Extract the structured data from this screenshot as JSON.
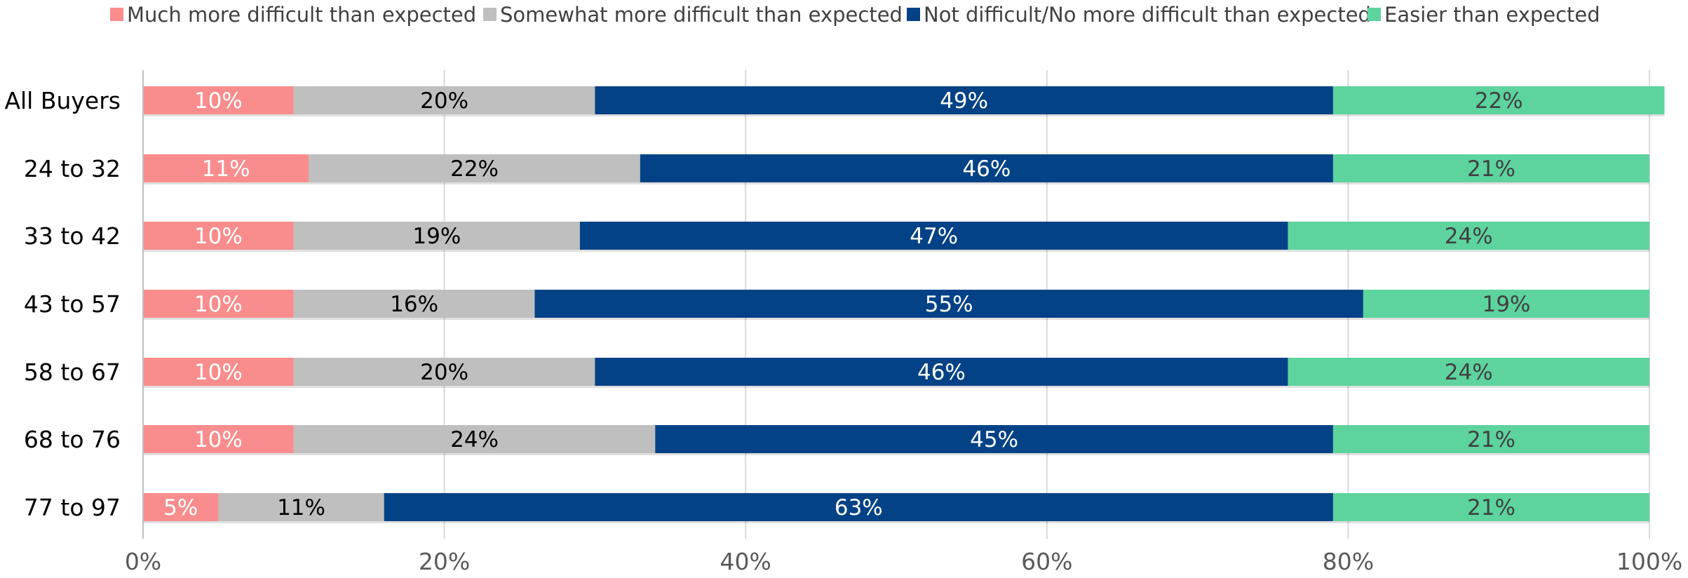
{
  "chart_data": {
    "type": "bar",
    "orientation": "horizontal",
    "stacked": true,
    "categories": [
      "All Buyers",
      "24 to 32",
      "33 to 42",
      "43 to 57",
      "58 to 67",
      "68 to 76",
      "77 to 97"
    ],
    "series": [
      {
        "name": "Much more difficult than expected",
        "color": "#F98D8D",
        "label_color": "#ffffff",
        "values": [
          10,
          11,
          10,
          10,
          10,
          10,
          5
        ]
      },
      {
        "name": "Somewhat more difficult than expected",
        "color": "#BFBFBF",
        "label_color": "#000000",
        "values": [
          20,
          22,
          19,
          16,
          20,
          24,
          11
        ]
      },
      {
        "name": "Not difficult/No more difficult than expected",
        "color": "#034286",
        "label_color": "#ffffff",
        "values": [
          49,
          46,
          47,
          55,
          46,
          45,
          63
        ]
      },
      {
        "name": "Easier than expected",
        "color": "#5DD39E",
        "label_color": "#404040",
        "values": [
          22,
          21,
          24,
          19,
          24,
          21,
          21
        ]
      }
    ],
    "data_labels": [
      [
        "10%",
        "20%",
        "49%",
        "22%"
      ],
      [
        "11%",
        "22%",
        "46%",
        "21%"
      ],
      [
        "10%",
        "19%",
        "47%",
        "24%"
      ],
      [
        "10%",
        "16%",
        "55%",
        "19%"
      ],
      [
        "10%",
        "20%",
        "46%",
        "24%"
      ],
      [
        "10%",
        "24%",
        "45%",
        "21%"
      ],
      [
        "5%",
        "11%",
        "63%",
        "21%"
      ]
    ],
    "x_ticks": [
      "0%",
      "20%",
      "40%",
      "60%",
      "80%",
      "100%"
    ],
    "xlim": [
      0,
      100
    ],
    "title": "",
    "xlabel": "",
    "ylabel": "",
    "grid": "vertical",
    "legend_position": "top"
  }
}
